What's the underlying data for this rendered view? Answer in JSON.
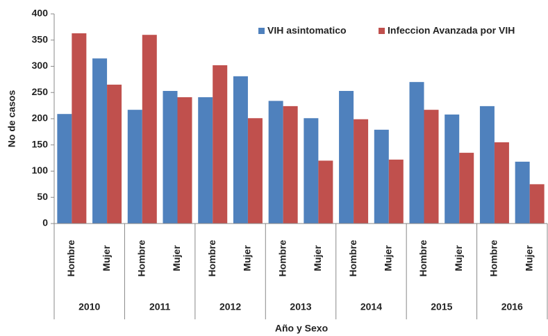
{
  "chart_data": {
    "type": "bar",
    "xlabel": "Año y Sexo",
    "ylabel": "No de casos",
    "groups": [
      "2010",
      "2011",
      "2012",
      "2013",
      "2014",
      "2015",
      "2016"
    ],
    "categories": [
      "Hombre",
      "Mujer",
      "Hombre",
      "Mujer",
      "Hombre",
      "Mujer",
      "Hombre",
      "Mujer",
      "Hombre",
      "Mujer",
      "Hombre",
      "Mujer",
      "Hombre",
      "Mujer"
    ],
    "series": [
      {
        "name": "VIH asintomatico",
        "color": "#4f81bd",
        "values": [
          209,
          315,
          217,
          253,
          241,
          281,
          234,
          201,
          253,
          179,
          270,
          208,
          224,
          118
        ]
      },
      {
        "name": "Infeccion Avanzada por VIH",
        "color": "#c0504d",
        "values": [
          363,
          265,
          360,
          241,
          302,
          201,
          224,
          120,
          199,
          122,
          217,
          135,
          155,
          75
        ]
      }
    ],
    "ylim": [
      0,
      400
    ],
    "yticks": [
      0,
      50,
      100,
      150,
      200,
      250,
      300,
      350,
      400
    ],
    "legend": "upper right"
  }
}
